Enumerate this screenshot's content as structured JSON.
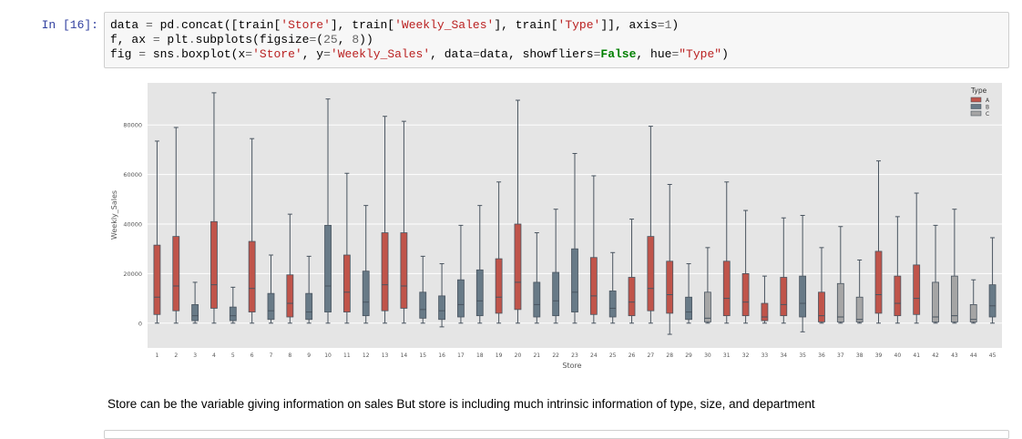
{
  "cell": {
    "prompt": "In [16]:",
    "code_lines": [
      "data = pd.concat([train['Store'], train['Weekly_Sales'], train['Type']], axis=1)",
      "f, ax = plt.subplots(figsize=(25, 8))",
      "fig = sns.boxplot(x='Store', y='Weekly_Sales', data=data, showfliers=False, hue=\"Type\")"
    ]
  },
  "markdown": "Store can be the variable giving information on sales But store is including much intrinsic information of type, size, and department",
  "colors": {
    "A": "#c0544a",
    "B": "#687a87",
    "C": "#a5a5a5",
    "plot_bg": "#e5e5e5",
    "line": "#4a5560"
  },
  "chart_data": {
    "type": "box",
    "xlabel": "Store",
    "ylabel": "Weekly_Sales",
    "ylim": [
      -10000,
      97000
    ],
    "yticks": [
      0,
      20000,
      40000,
      60000,
      80000
    ],
    "legend": {
      "title": "Type",
      "entries": [
        "A",
        "B",
        "C"
      ],
      "placement": "top-right"
    },
    "grid": true,
    "boxes": [
      {
        "store": "1",
        "type": "A",
        "whislo": 0,
        "q1": 3500,
        "med": 10500,
        "q3": 31500,
        "whishi": 73500
      },
      {
        "store": "2",
        "type": "A",
        "whislo": 0,
        "q1": 5000,
        "med": 15000,
        "q3": 35000,
        "whishi": 79000
      },
      {
        "store": "3",
        "type": "B",
        "whislo": 0,
        "q1": 1000,
        "med": 3000,
        "q3": 7500,
        "whishi": 16500
      },
      {
        "store": "4",
        "type": "A",
        "whislo": 0,
        "q1": 6000,
        "med": 15500,
        "q3": 41000,
        "whishi": 93000
      },
      {
        "store": "5",
        "type": "B",
        "whislo": 0,
        "q1": 1000,
        "med": 3000,
        "q3": 6500,
        "whishi": 14500
      },
      {
        "store": "6",
        "type": "A",
        "whislo": 0,
        "q1": 4500,
        "med": 14000,
        "q3": 33000,
        "whishi": 74500
      },
      {
        "store": "7",
        "type": "B",
        "whislo": 0,
        "q1": 1500,
        "med": 5000,
        "q3": 12000,
        "whishi": 27500
      },
      {
        "store": "8",
        "type": "A",
        "whislo": 0,
        "q1": 2500,
        "med": 8000,
        "q3": 19500,
        "whishi": 44000
      },
      {
        "store": "9",
        "type": "B",
        "whislo": 0,
        "q1": 1500,
        "med": 4500,
        "q3": 12000,
        "whishi": 27000
      },
      {
        "store": "10",
        "type": "B",
        "whislo": 0,
        "q1": 4500,
        "med": 15000,
        "q3": 39500,
        "whishi": 90500
      },
      {
        "store": "11",
        "type": "A",
        "whislo": 0,
        "q1": 4500,
        "med": 12500,
        "q3": 27500,
        "whishi": 60500
      },
      {
        "store": "12",
        "type": "B",
        "whislo": 0,
        "q1": 3000,
        "med": 8500,
        "q3": 21000,
        "whishi": 47500
      },
      {
        "store": "13",
        "type": "A",
        "whislo": 0,
        "q1": 5000,
        "med": 15500,
        "q3": 36500,
        "whishi": 83500
      },
      {
        "store": "14",
        "type": "A",
        "whislo": 0,
        "q1": 6000,
        "med": 15000,
        "q3": 36500,
        "whishi": 81500
      },
      {
        "store": "15",
        "type": "B",
        "whislo": 0,
        "q1": 2000,
        "med": 5500,
        "q3": 12500,
        "whishi": 27000
      },
      {
        "store": "16",
        "type": "B",
        "whislo": -1500,
        "q1": 1500,
        "med": 5000,
        "q3": 11000,
        "whishi": 24000
      },
      {
        "store": "17",
        "type": "B",
        "whislo": 0,
        "q1": 2500,
        "med": 7500,
        "q3": 17500,
        "whishi": 39500
      },
      {
        "store": "18",
        "type": "B",
        "whislo": 0,
        "q1": 3000,
        "med": 9000,
        "q3": 21500,
        "whishi": 47500
      },
      {
        "store": "19",
        "type": "A",
        "whislo": 0,
        "q1": 4000,
        "med": 10500,
        "q3": 26000,
        "whishi": 57000
      },
      {
        "store": "20",
        "type": "A",
        "whislo": 0,
        "q1": 5500,
        "med": 16500,
        "q3": 40000,
        "whishi": 90000
      },
      {
        "store": "21",
        "type": "B",
        "whislo": 0,
        "q1": 2500,
        "med": 7500,
        "q3": 16500,
        "whishi": 36500
      },
      {
        "store": "22",
        "type": "B",
        "whislo": 0,
        "q1": 3000,
        "med": 9000,
        "q3": 20500,
        "whishi": 46000
      },
      {
        "store": "23",
        "type": "B",
        "whislo": 0,
        "q1": 4500,
        "med": 12500,
        "q3": 30000,
        "whishi": 68500
      },
      {
        "store": "24",
        "type": "A",
        "whislo": 0,
        "q1": 3500,
        "med": 11000,
        "q3": 26500,
        "whishi": 59500
      },
      {
        "store": "25",
        "type": "B",
        "whislo": 0,
        "q1": 2500,
        "med": 6000,
        "q3": 13000,
        "whishi": 28500
      },
      {
        "store": "26",
        "type": "A",
        "whislo": 0,
        "q1": 3000,
        "med": 8500,
        "q3": 18500,
        "whishi": 42000
      },
      {
        "store": "27",
        "type": "A",
        "whislo": 0,
        "q1": 5000,
        "med": 14000,
        "q3": 35000,
        "whishi": 79500
      },
      {
        "store": "28",
        "type": "A",
        "whislo": -4500,
        "q1": 4000,
        "med": 11500,
        "q3": 25000,
        "whishi": 56000
      },
      {
        "store": "29",
        "type": "B",
        "whislo": 0,
        "q1": 1500,
        "med": 4500,
        "q3": 10500,
        "whishi": 24000
      },
      {
        "store": "30",
        "type": "C",
        "whislo": 0,
        "q1": 500,
        "med": 2000,
        "q3": 12500,
        "whishi": 30500
      },
      {
        "store": "31",
        "type": "A",
        "whislo": 0,
        "q1": 3000,
        "med": 10000,
        "q3": 25000,
        "whishi": 57000
      },
      {
        "store": "32",
        "type": "A",
        "whislo": 0,
        "q1": 3000,
        "med": 8500,
        "q3": 20000,
        "whishi": 45500
      },
      {
        "store": "33",
        "type": "A",
        "whislo": 0,
        "q1": 1000,
        "med": 2500,
        "q3": 8000,
        "whishi": 19000
      },
      {
        "store": "34",
        "type": "A",
        "whislo": 0,
        "q1": 3000,
        "med": 7500,
        "q3": 18500,
        "whishi": 42500
      },
      {
        "store": "35",
        "type": "B",
        "whislo": -3500,
        "q1": 2500,
        "med": 8000,
        "q3": 19000,
        "whishi": 43500
      },
      {
        "store": "36",
        "type": "A",
        "whislo": 0,
        "q1": 500,
        "med": 3000,
        "q3": 12500,
        "whishi": 30500
      },
      {
        "store": "37",
        "type": "C",
        "whislo": 0,
        "q1": 500,
        "med": 2500,
        "q3": 16000,
        "whishi": 39000
      },
      {
        "store": "38",
        "type": "C",
        "whislo": 0,
        "q1": 500,
        "med": 1500,
        "q3": 10500,
        "whishi": 25500
      },
      {
        "store": "39",
        "type": "A",
        "whislo": 0,
        "q1": 4000,
        "med": 11500,
        "q3": 29000,
        "whishi": 65500
      },
      {
        "store": "40",
        "type": "A",
        "whislo": 0,
        "q1": 3000,
        "med": 8000,
        "q3": 19000,
        "whishi": 43000
      },
      {
        "store": "41",
        "type": "A",
        "whislo": 0,
        "q1": 3500,
        "med": 10000,
        "q3": 23500,
        "whishi": 52500
      },
      {
        "store": "42",
        "type": "C",
        "whislo": 0,
        "q1": 500,
        "med": 2500,
        "q3": 16500,
        "whishi": 39500
      },
      {
        "store": "43",
        "type": "C",
        "whislo": 0,
        "q1": 500,
        "med": 3000,
        "q3": 19000,
        "whishi": 46000
      },
      {
        "store": "44",
        "type": "C",
        "whislo": 0,
        "q1": 500,
        "med": 1500,
        "q3": 7500,
        "whishi": 17500
      },
      {
        "store": "45",
        "type": "B",
        "whislo": 0,
        "q1": 2500,
        "med": 7000,
        "q3": 15500,
        "whishi": 34500
      }
    ]
  }
}
